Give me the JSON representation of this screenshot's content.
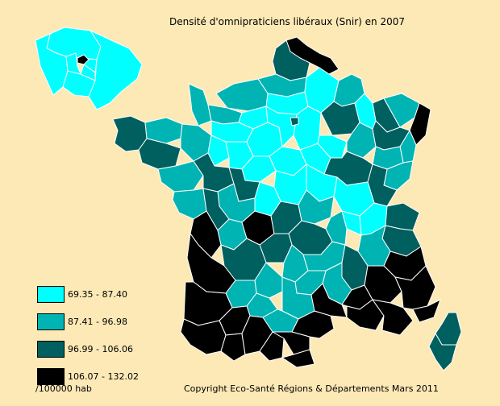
{
  "title": "Densité d'omnipraticiens libéraux (Snir) en 2007",
  "legend": {
    "items": [
      {
        "label": "69.35 - 87.40",
        "color": "#00ffff"
      },
      {
        "label": "87.41 - 96.98",
        "color": "#00b4b4"
      },
      {
        "label": "96.99 - 106.06",
        "color": "#005f5f"
      },
      {
        "label": "106.07 - 132.02",
        "color": "#000000"
      }
    ]
  },
  "unit": "/100000 hab",
  "copyright": "Copyright Eco-Santé Régions & Départements Mars 2011",
  "colors": {
    "background": "#fde9b6",
    "class_1": "#00ffff",
    "class_2": "#00b4b4",
    "class_3": "#005f5f",
    "class_4": "#000000",
    "border": "#ffffff"
  }
}
